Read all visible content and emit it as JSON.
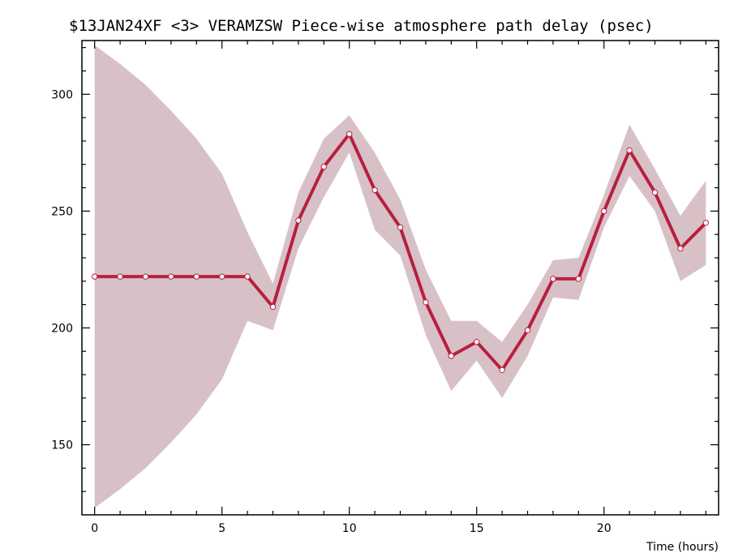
{
  "chart_data": {
    "type": "line",
    "title": "$13JAN24XF <3>  VERAMZSW  Piece-wise atmosphere path delay (psec)",
    "xlabel": "Time (hours)",
    "ylabel": "",
    "xlim": [
      -0.5,
      24.5
    ],
    "ylim": [
      120,
      323
    ],
    "x_ticks": [
      0,
      5,
      10,
      15,
      20
    ],
    "y_ticks": [
      150,
      200,
      250,
      300
    ],
    "grid": false,
    "series": [
      {
        "x": [
          0,
          1,
          2,
          3,
          4,
          5,
          6,
          7,
          8,
          9,
          10,
          11,
          12,
          13,
          14,
          15,
          16,
          17,
          18,
          19,
          20,
          21,
          22,
          23,
          24
        ],
        "values": [
          222,
          222,
          222,
          222,
          222,
          222,
          222,
          209,
          246,
          269,
          283,
          259,
          243,
          211,
          188,
          194,
          182,
          199,
          221,
          221,
          250,
          276,
          258,
          234,
          245
        ],
        "upper": [
          321,
          313,
          304,
          293,
          281,
          266,
          241,
          219,
          258,
          281,
          291,
          275,
          255,
          225,
          203,
          203,
          194,
          210,
          229,
          230,
          257,
          287,
          268,
          248,
          263
        ],
        "lower": [
          123,
          131,
          140,
          151,
          163,
          178,
          203,
          199,
          234,
          256,
          275,
          242,
          231,
          197,
          173,
          186,
          170,
          188,
          213,
          212,
          243,
          265,
          250,
          220,
          227
        ]
      }
    ],
    "colors": {
      "band": "#d8c1c6",
      "line": "#b81f3e",
      "marker_fill": "#ffffff"
    }
  }
}
